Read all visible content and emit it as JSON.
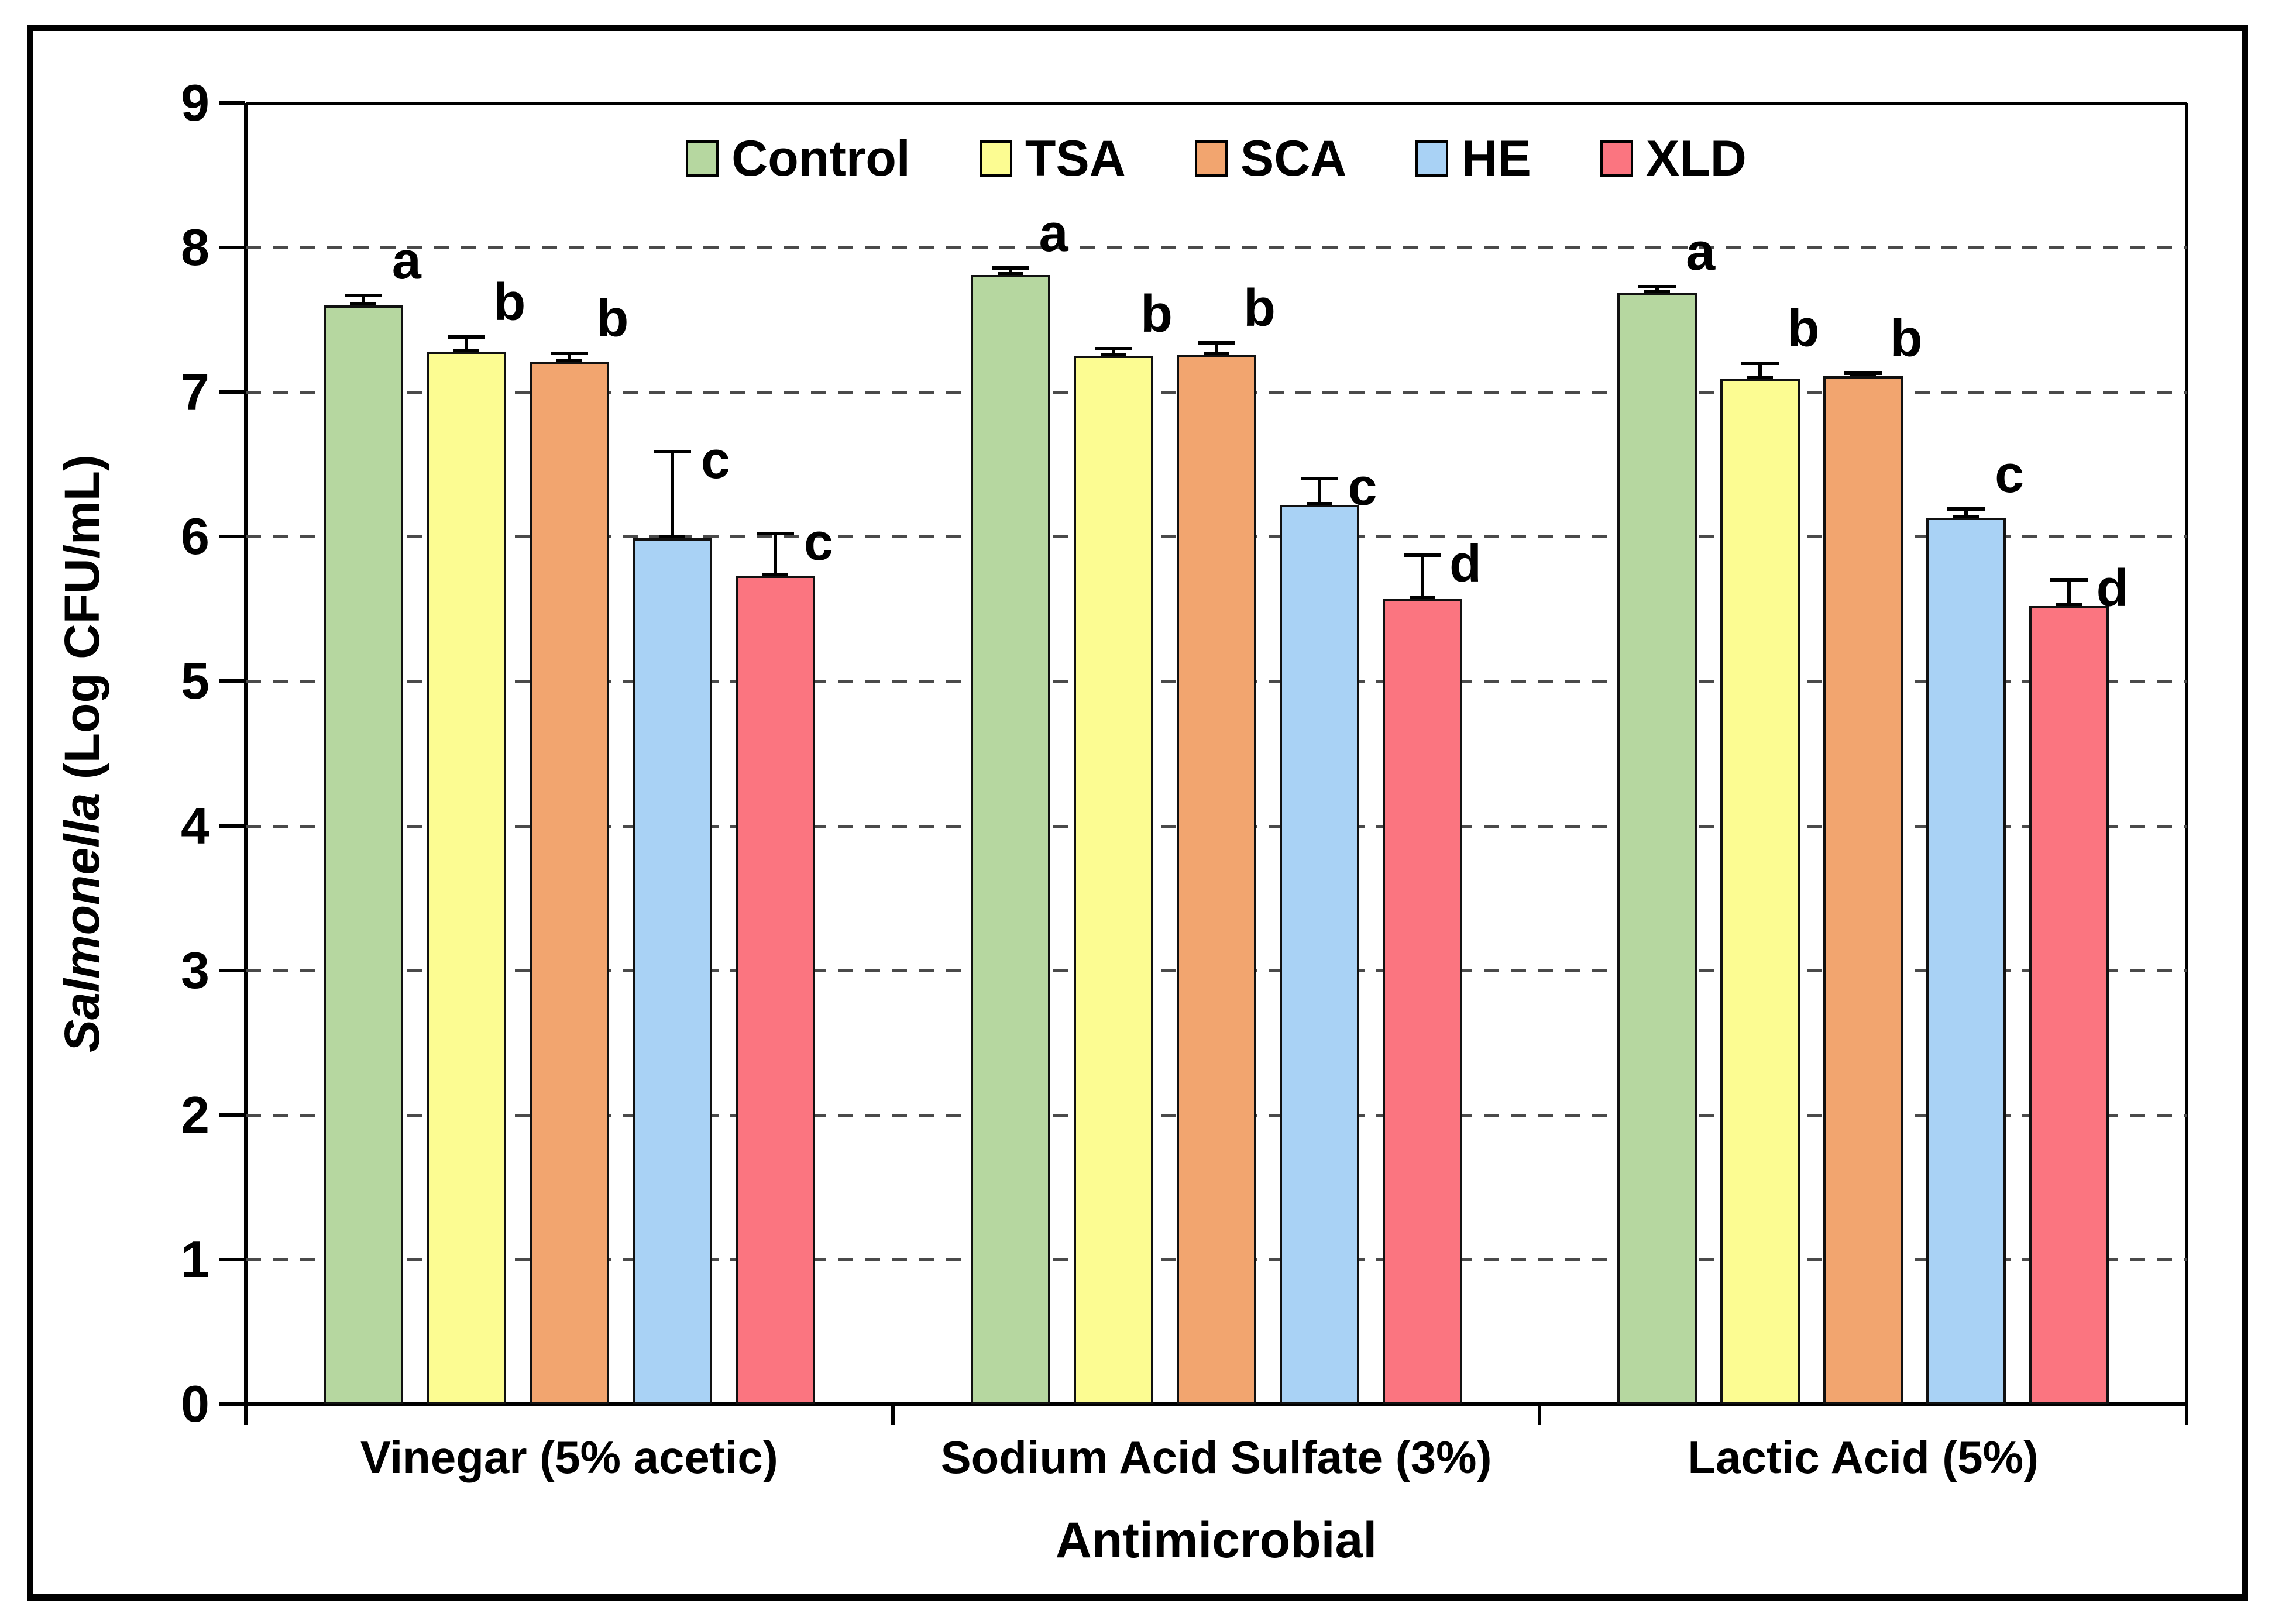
{
  "chart_data": {
    "type": "bar",
    "title": "",
    "xlabel": "Antimicrobial",
    "ylabel": "Salmonella (Log CFU/mL)",
    "ylabel_italic_part": "Salmonella",
    "ylabel_regular_part": " (Log CFU/mL)",
    "ylim": [
      0,
      9
    ],
    "ytick_step": 1,
    "ytick_labels": [
      "0",
      "1",
      "2",
      "3",
      "4",
      "5",
      "6",
      "7",
      "8",
      "9"
    ],
    "grid": "horizontal-dashed-at-integers",
    "legend_position": "top-center",
    "error_bars": "upper-only",
    "categories": [
      "Vinegar (5% acetic)",
      "Sodium Acid Sulfate (3%)",
      "Lactic Acid (5%)"
    ],
    "series": [
      {
        "name": "Control",
        "color": "#b6d7a0",
        "values": [
          7.6,
          7.81,
          7.69
        ],
        "upper_errors": [
          0.07,
          0.05,
          0.04
        ],
        "sig_letters": [
          "a",
          "a",
          "a"
        ]
      },
      {
        "name": "TSA",
        "color": "#fcfc92",
        "values": [
          7.28,
          7.25,
          7.09
        ],
        "upper_errors": [
          0.1,
          0.05,
          0.11
        ],
        "sig_letters": [
          "b",
          "b",
          "b"
        ]
      },
      {
        "name": "SCA",
        "color": "#f2a56f",
        "values": [
          7.21,
          7.26,
          7.11
        ],
        "upper_errors": [
          0.06,
          0.08,
          0.02
        ],
        "sig_letters": [
          "b",
          "b",
          "b"
        ]
      },
      {
        "name": "HE",
        "color": "#a9d2f5",
        "values": [
          5.99,
          6.22,
          6.13
        ],
        "upper_errors": [
          0.6,
          0.18,
          0.06
        ],
        "sig_letters": [
          "c",
          "c",
          "c"
        ]
      },
      {
        "name": "XLD",
        "color": "#fb7580",
        "values": [
          5.73,
          5.57,
          5.52
        ],
        "upper_errors": [
          0.29,
          0.3,
          0.18
        ],
        "sig_letters": [
          "c",
          "d",
          "d"
        ]
      }
    ]
  }
}
